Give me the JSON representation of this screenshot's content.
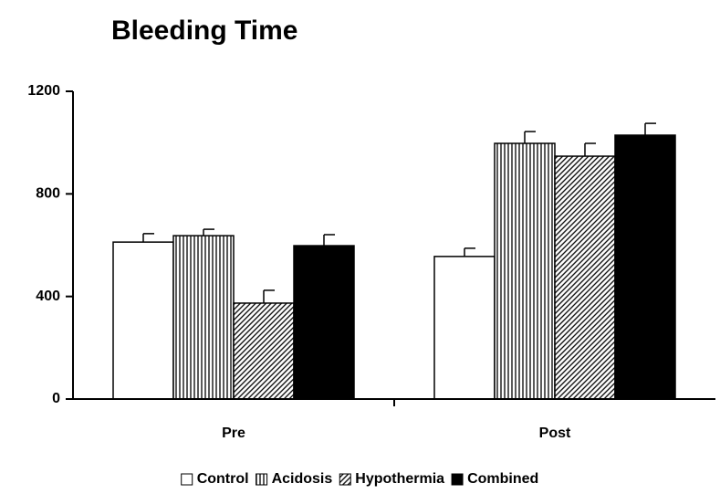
{
  "chart_data": {
    "type": "bar",
    "title": "Bleeding Time",
    "categories": [
      "Pre",
      "Post"
    ],
    "series": [
      {
        "name": "Control",
        "color": "#ffffff",
        "pattern": "none",
        "values": [
          612,
          556
        ],
        "errors": [
          33,
          32
        ]
      },
      {
        "name": "Acidosis",
        "color": "#ffffff",
        "pattern": "vertical",
        "values": [
          637,
          997
        ],
        "errors": [
          25,
          46
        ]
      },
      {
        "name": "Hypothermia",
        "color": "#ffffff",
        "pattern": "diagonal",
        "values": [
          374,
          947
        ],
        "errors": [
          50,
          50
        ]
      },
      {
        "name": "Combined",
        "color": "#000000",
        "pattern": "none",
        "values": [
          598,
          1029
        ],
        "errors": [
          43,
          46
        ]
      }
    ],
    "ylim": [
      0,
      1200
    ],
    "yticks": [
      0,
      400,
      800,
      1200
    ],
    "grid": false,
    "legend": "bottom"
  }
}
